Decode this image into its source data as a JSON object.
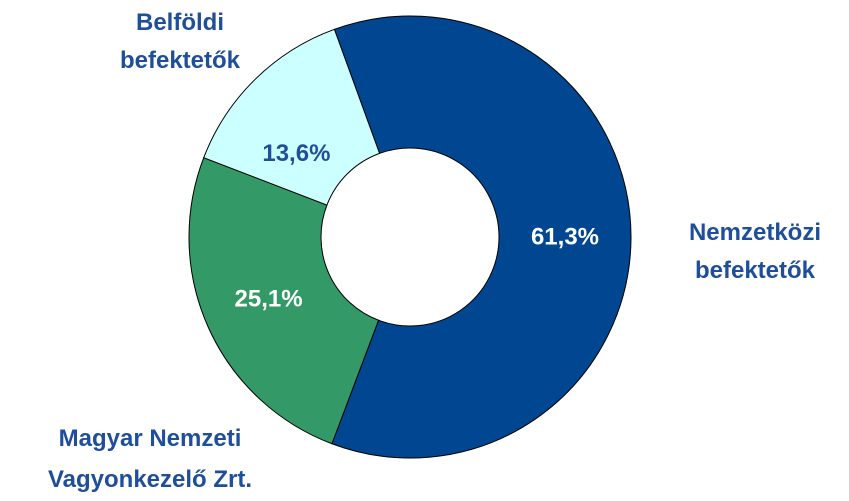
{
  "chart_data": {
    "type": "donut",
    "categories": [
      "Nemzetközi befektetők",
      "Magyar Nemzeti Vagyonkezelő Zrt.",
      "Belföldi befektetők"
    ],
    "values": [
      61.3,
      25.1,
      13.6
    ],
    "value_labels": [
      "61,3%",
      "25,1%",
      "13,6%"
    ],
    "colors": [
      "#004690",
      "#339966",
      "#ccffff"
    ]
  }
}
